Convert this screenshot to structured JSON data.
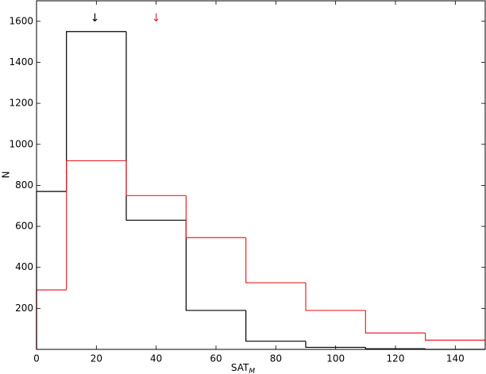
{
  "chart_data": {
    "type": "histogram",
    "xlabel": "SAT",
    "xlabel_subscript": "M",
    "ylabel": "N",
    "bins": [
      0,
      10,
      30,
      50,
      70,
      90,
      110,
      130,
      150
    ],
    "series": [
      {
        "color": "#000000",
        "values": [
          770,
          1550,
          630,
          190,
          40,
          10,
          3,
          0
        ]
      },
      {
        "color": "#e8262a",
        "values": [
          290,
          920,
          750,
          545,
          325,
          190,
          80,
          45
        ]
      }
    ],
    "annotations": [
      {
        "text": "↓",
        "x": 19.5,
        "color": "#000000"
      },
      {
        "text": "↓",
        "x": 40,
        "color": "#e8262a"
      }
    ],
    "xlim": [
      0,
      150
    ],
    "xticks": [
      0,
      20,
      40,
      60,
      80,
      100,
      120,
      140
    ],
    "ylim": [
      0,
      1700
    ],
    "yticks": [
      200,
      400,
      600,
      800,
      1000,
      1200,
      1400,
      1600
    ]
  }
}
